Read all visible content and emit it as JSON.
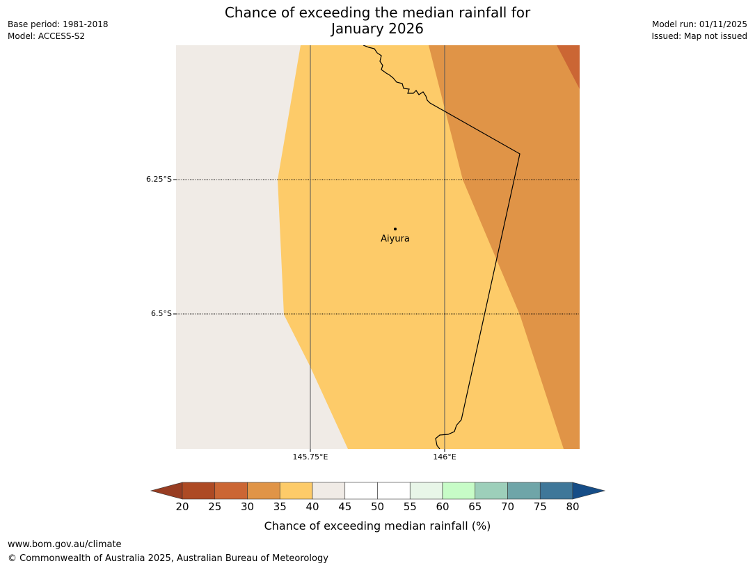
{
  "title": {
    "line1": "Chance of exceeding the median rainfall for",
    "line2": "January 2026"
  },
  "meta": {
    "base_period": "Base period: 1981-2018",
    "model": "Model: ACCESS-S2",
    "model_run": "Model run: 01/11/2025",
    "issued": "Issued: Map not issued"
  },
  "map": {
    "lat_labels": [
      "6.25°S",
      "6.5°S"
    ],
    "lon_labels": [
      "145.75°E",
      "146°E"
    ],
    "place_name": "Aiyura",
    "fill_colors": {
      "bin_35_40": "#fdcb69",
      "bin_30_35": "#e09447",
      "bin_25_30": "#cb6634",
      "bin_40_45": "#f0ebe6"
    }
  },
  "colorbar": {
    "ticks": [
      "20",
      "25",
      "30",
      "35",
      "40",
      "45",
      "50",
      "55",
      "60",
      "65",
      "70",
      "75",
      "80"
    ],
    "colors": [
      "#ad4a24",
      "#cb6634",
      "#e09447",
      "#fdcb69",
      "#f0ebe6",
      "#ffffff",
      "#ffffff",
      "#e8f6e8",
      "#c7fcc7",
      "#9dcfba",
      "#6fa5a8",
      "#3f7799"
    ],
    "low_extend_color": "#983d22",
    "high_extend_color": "#164d87",
    "label": "Chance of exceeding median rainfall (%)"
  },
  "footer": {
    "url": "www.bom.gov.au/climate",
    "copyright": "© Commonwealth of Australia 2025, Australian Bureau of Meteorology"
  }
}
